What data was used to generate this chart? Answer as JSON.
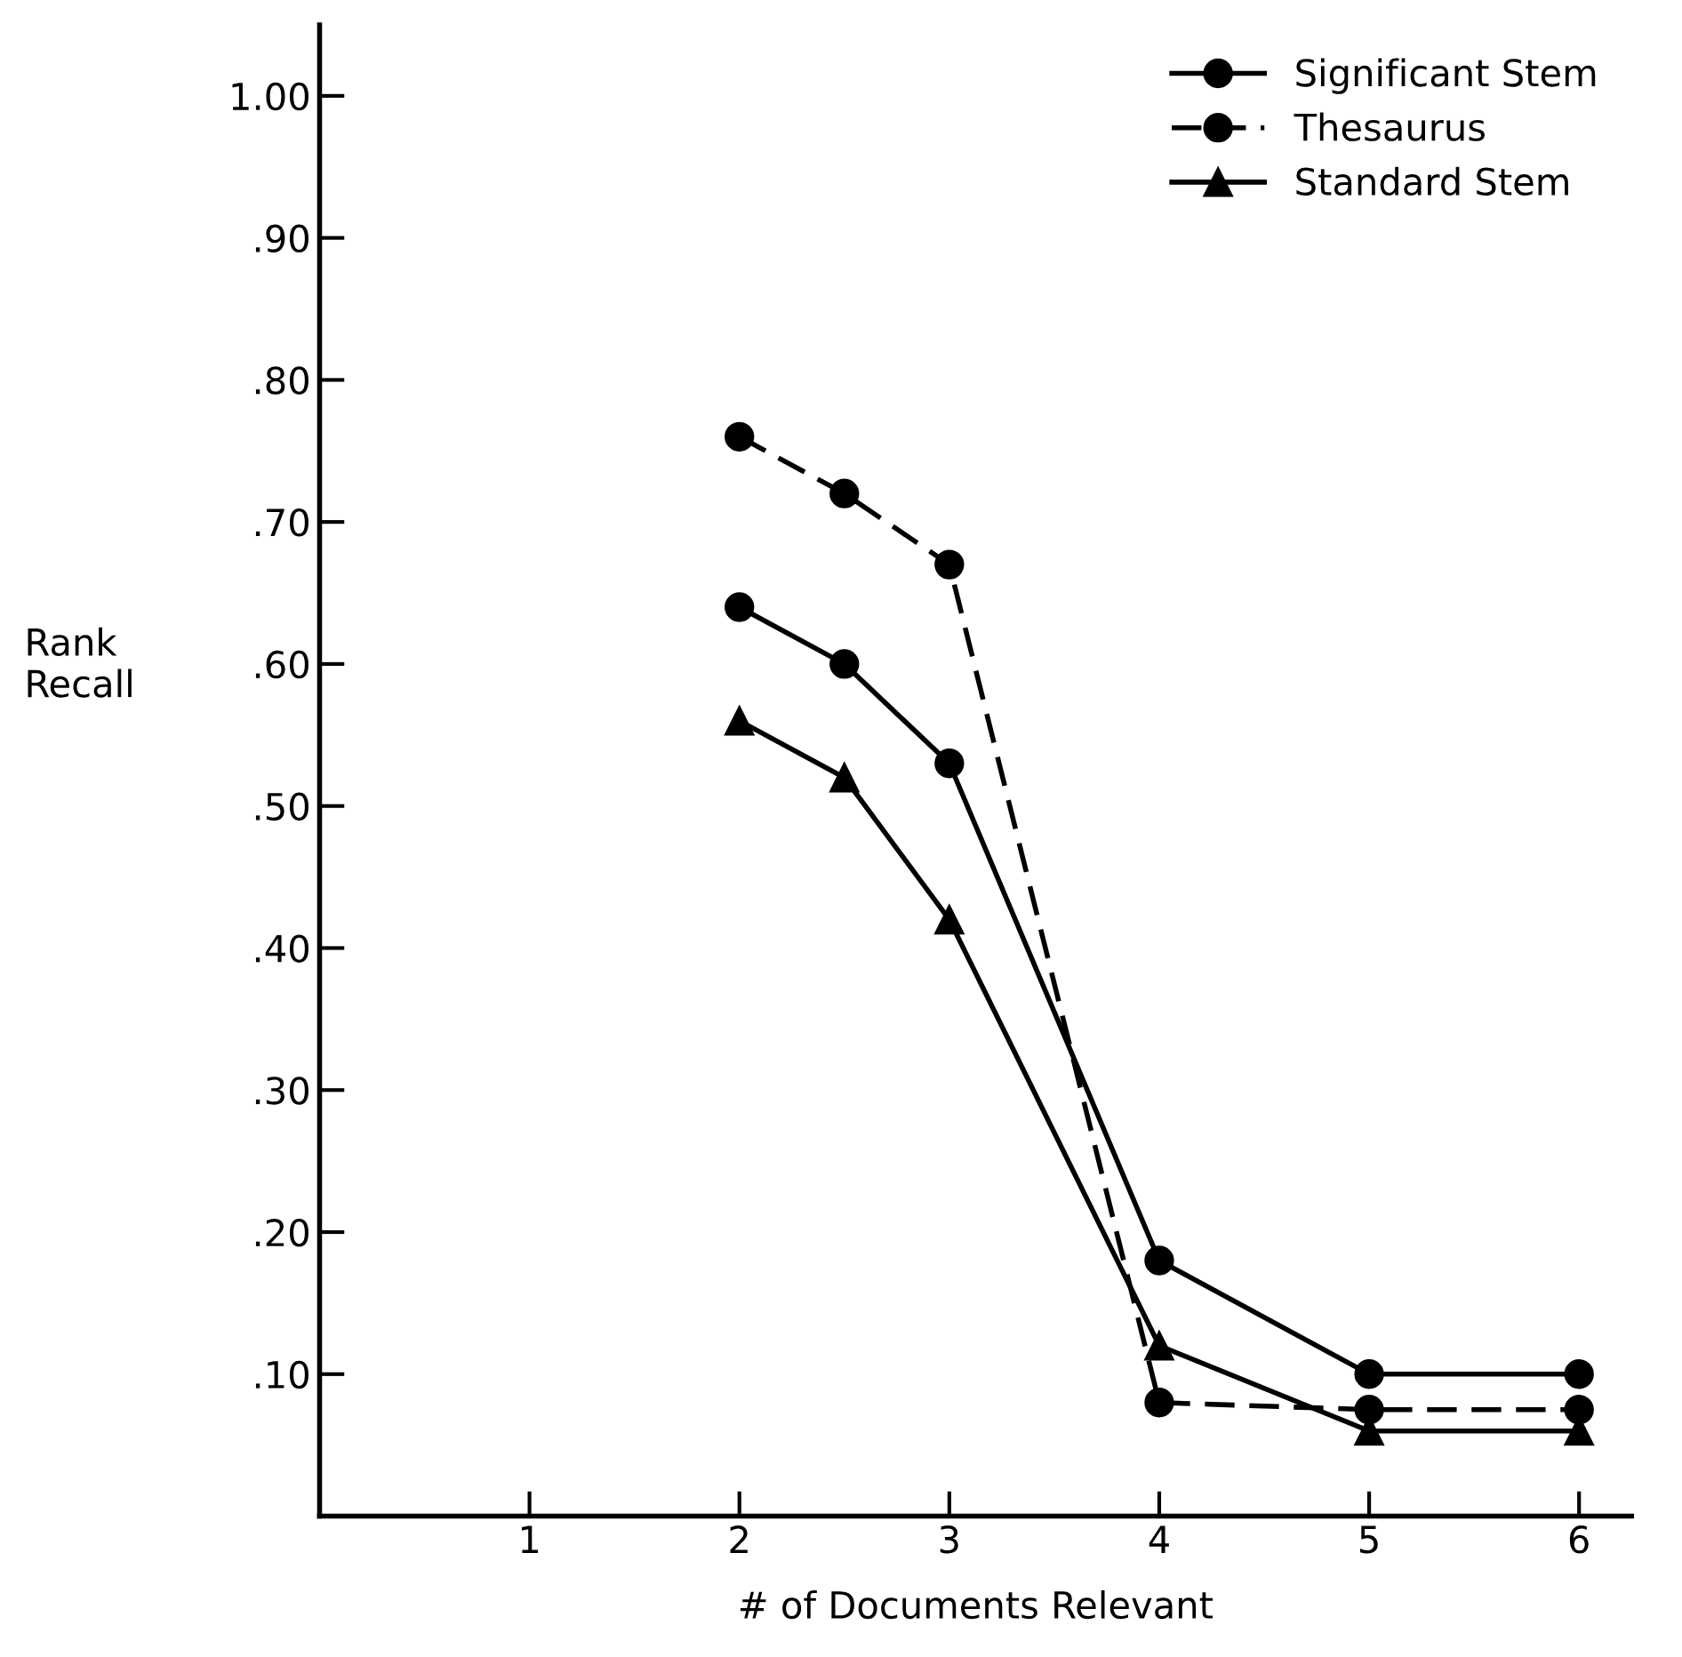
{
  "chart_data": {
    "type": "line",
    "xlabel": "# of Documents Relevant",
    "ylabel": "Rank\nRecall",
    "x": [
      2,
      2.5,
      3,
      4,
      5,
      6
    ],
    "xlim": [
      0,
      6.25
    ],
    "xticks": [
      1,
      2,
      3,
      4,
      5,
      6
    ],
    "ylim": [
      0,
      1.05
    ],
    "yticks": [
      {
        "value": 0.1,
        "label": ".10"
      },
      {
        "value": 0.2,
        "label": ".20"
      },
      {
        "value": 0.3,
        "label": ".30"
      },
      {
        "value": 0.4,
        "label": ".40"
      },
      {
        "value": 0.5,
        "label": ".50"
      },
      {
        "value": 0.6,
        "label": ".60"
      },
      {
        "value": 0.7,
        "label": ".70"
      },
      {
        "value": 0.8,
        "label": ".80"
      },
      {
        "value": 0.9,
        "label": ".90"
      },
      {
        "value": 1.0,
        "label": "1.00"
      }
    ],
    "grid": false,
    "legend": "top right",
    "series": [
      {
        "name": "Significant Stem",
        "color": "#000000",
        "marker": "circle",
        "line_style": "solid",
        "values": [
          0.64,
          0.6,
          0.53,
          0.18,
          0.1,
          0.1
        ]
      },
      {
        "name": "Thesaurus",
        "color": "#000000",
        "marker": "circle",
        "line_style": "dashed",
        "values": [
          0.76,
          0.72,
          0.67,
          0.08,
          0.075,
          0.075
        ]
      },
      {
        "name": "Standard Stem",
        "color": "#000000",
        "marker": "triangle",
        "line_style": "solid",
        "values": [
          0.56,
          0.52,
          0.42,
          0.12,
          0.06,
          0.06
        ]
      }
    ]
  }
}
